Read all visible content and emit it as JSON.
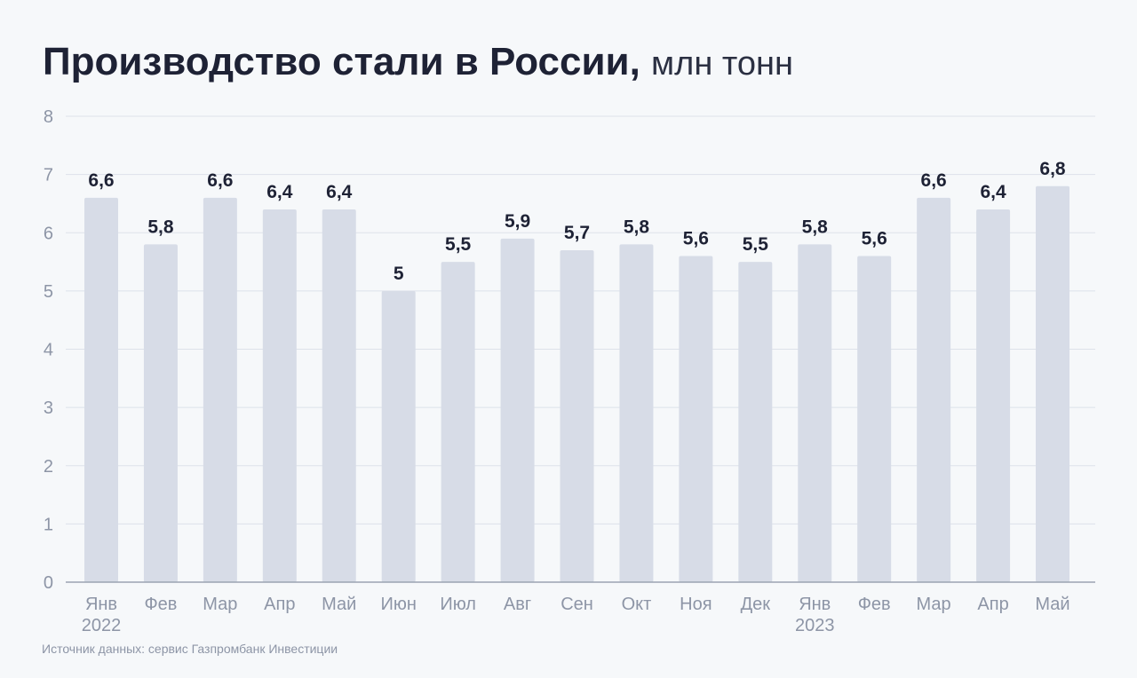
{
  "title": {
    "main": "Производство стали в России,",
    "unit": "млн тонн"
  },
  "source": "Источник данных: сервис Газпромбанк Инвестиции",
  "colors": {
    "bar": "#d7dce7",
    "grid": "#dde2ea",
    "axis": "#9ca3b1"
  },
  "chart_data": {
    "type": "bar",
    "title": "Производство стали в России, млн тонн",
    "categories": [
      "Янв",
      "Фев",
      "Мар",
      "Апр",
      "Май",
      "Июн",
      "Июл",
      "Авг",
      "Сен",
      "Окт",
      "Ноя",
      "Дек",
      "Янв",
      "Фев",
      "Мар",
      "Апр",
      "Май"
    ],
    "year_labels": [
      "2022",
      "",
      "",
      "",
      "",
      "",
      "",
      "",
      "",
      "",
      "",
      "",
      "2023",
      "",
      "",
      "",
      ""
    ],
    "values": [
      6.6,
      5.8,
      6.6,
      6.4,
      6.4,
      5,
      5.5,
      5.9,
      5.7,
      5.8,
      5.6,
      5.5,
      5.8,
      5.6,
      6.6,
      6.4,
      6.8
    ],
    "value_labels": [
      "6,6",
      "5,8",
      "6,6",
      "6,4",
      "6,4",
      "5",
      "5,5",
      "5,9",
      "5,7",
      "5,8",
      "5,6",
      "5,5",
      "5,8",
      "5,6",
      "6,6",
      "6,4",
      "6,8"
    ],
    "yticks": [
      0,
      1,
      2,
      3,
      4,
      5,
      6,
      7,
      8
    ],
    "ylim": [
      0,
      8
    ],
    "grid": true,
    "xlabel": "",
    "ylabel": ""
  }
}
